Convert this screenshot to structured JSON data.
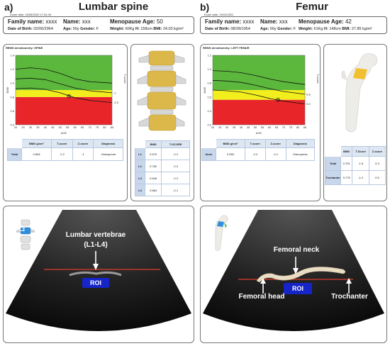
{
  "left": {
    "panel_letter": "a)",
    "title": "Lumbar spine",
    "exam_date": "Exam date: 15/06/2020 17:34:49",
    "patient": {
      "family_label": "Family name:",
      "family_value": "xxxx",
      "name_label": "Name:",
      "name_value": "xxx",
      "menopause_label": "Menopause Age:",
      "menopause_value": "50",
      "dob_label": "Date of Birth:",
      "dob_value": "02/06/2964",
      "age_label": "Age:",
      "age_value": "56y",
      "gender_label": "Gender:",
      "gender_value": "F",
      "weight_label": "Weight:",
      "weight_value": "60Kg",
      "height_label": "H:",
      "height_value": "158cm",
      "bmi_label": "BMI:",
      "bmi_value": "24.03 kg/m²"
    },
    "chart_title": "REMS densitometry: SPINE",
    "summary_table": {
      "headers": [
        "BMD g/cm²",
        "T-score",
        "Z-score",
        "Diagnosis"
      ],
      "row_label": "Total",
      "row": [
        "0.808",
        "-2.2",
        "-1",
        "Osteopenia"
      ]
    },
    "vertebra_table": {
      "headers": [
        "BMD",
        "T-SCORE"
      ],
      "rows": [
        {
          "label": "L1",
          "bmd": "0.679",
          "t": "-2.2"
        },
        {
          "label": "L2",
          "bmd": "0.782",
          "t": "-2.2"
        },
        {
          "label": "L3",
          "bmd": "0.846",
          "t": "-2.2"
        },
        {
          "label": "L4",
          "bmd": "0.884",
          "t": "-2.1"
        }
      ]
    },
    "ultrasound": {
      "inset_label": "L2",
      "annotation_line1": "Lumbar vertebrae",
      "annotation_line2": "(L1-L4)",
      "roi": "ROI"
    }
  },
  "right": {
    "panel_letter": "b)",
    "title": "Femur",
    "exam_date": "Exam date: 19/10/2021",
    "patient": {
      "family_label": "Family name:",
      "family_value": "xxxx",
      "name_label": "Name:",
      "name_value": "xxx",
      "menopause_label": "Menopause Age:",
      "menopause_value": "42",
      "dob_label": "Date of Birth:",
      "dob_value": "08/28/1954",
      "age_label": "Age:",
      "age_value": "66y",
      "gender_label": "Gender:",
      "gender_value": "F",
      "weight_label": "Weight:",
      "weight_value": "61Kg",
      "height_label": "H:",
      "height_value": "148cm",
      "bmi_label": "BMI:",
      "bmi_value": "27.85 kg/m²"
    },
    "chart_title": "REMS densitometry: LEFT FEMUR",
    "summary_table": {
      "headers": [
        "BMD g/cm²",
        "T-score",
        "Z-score",
        "Diagnosis"
      ],
      "row_label": "Neck",
      "row": [
        "0.559",
        "-2.3",
        "-0.1",
        "Osteopenia"
      ]
    },
    "region_table": {
      "headers": [
        "BMD",
        "T-Score",
        "Z-score"
      ],
      "rows": [
        {
          "label": "Total",
          "bmd": "0.751",
          "t": "-1.6",
          "z": "0.3"
        },
        {
          "label": "Trochanter",
          "bmd": "0.775",
          "t": "-1.2",
          "z": "0.5"
        }
      ]
    },
    "ultrasound": {
      "neck_label": "Femoral neck",
      "head_label": "Femoral head",
      "trochanter_label": "Trochanter",
      "roi": "ROI"
    }
  },
  "chart_data": [
    {
      "type": "line",
      "title": "REMS densitometry: SPINE",
      "xlabel": "AGE",
      "ylabel": "BMD",
      "y2label": "T-score",
      "x_ticks": [
        20,
        25,
        30,
        35,
        40,
        45,
        50,
        55,
        60,
        65,
        70,
        75,
        80,
        85
      ],
      "y_ticks": [
        0.4,
        0.6,
        0.8,
        1.0,
        1.2,
        1.4
      ],
      "xlim": [
        20,
        85
      ],
      "ylim": [
        0.4,
        1.4
      ],
      "t_ticks": [
        "-1",
        "-2.5"
      ],
      "zones": [
        {
          "color": "#e8262a",
          "from": 0.4,
          "to": 0.8
        },
        {
          "color": "#f2ee1e",
          "from": 0.8,
          "to": 0.9
        },
        {
          "color": "#5cb83c",
          "from": 0.9,
          "to": 1.4
        }
      ],
      "series": [
        {
          "values_x": [
            20,
            30,
            40,
            50,
            60,
            70,
            85
          ],
          "values_y": [
            1.2,
            1.22,
            1.2,
            1.14,
            1.06,
            1.02,
            1.0
          ]
        },
        {
          "values_x": [
            20,
            30,
            40,
            50,
            60,
            70,
            85
          ],
          "values_y": [
            1.06,
            1.07,
            1.05,
            0.99,
            0.93,
            0.89,
            0.86
          ]
        },
        {
          "values_x": [
            20,
            30,
            40,
            50,
            60,
            70,
            85
          ],
          "values_y": [
            0.92,
            0.93,
            0.91,
            0.86,
            0.79,
            0.75,
            0.72
          ]
        }
      ],
      "points": [
        {
          "x": 56,
          "y": 0.81
        }
      ]
    },
    {
      "type": "line",
      "title": "REMS densitometry: LEFT FEMUR",
      "xlabel": "AGE",
      "ylabel": "BMD",
      "y2label": "T-score",
      "x_ticks": [
        20,
        25,
        30,
        35,
        40,
        45,
        50,
        55,
        60,
        65,
        70,
        75,
        80,
        85
      ],
      "y_ticks": [
        0.2,
        0.4,
        0.6,
        0.8,
        1.0,
        1.2
      ],
      "xlim": [
        20,
        85
      ],
      "ylim": [
        0.2,
        1.2
      ],
      "t_ticks": [
        "0.8",
        "0.6"
      ],
      "zones": [
        {
          "color": "#e8262a",
          "from": 0.2,
          "to": 0.56
        },
        {
          "color": "#f2ee1e",
          "from": 0.56,
          "to": 0.7
        },
        {
          "color": "#5cb83c",
          "from": 0.7,
          "to": 1.2
        }
      ],
      "series": [
        {
          "values_x": [
            20,
            30,
            40,
            50,
            60,
            70,
            85
          ],
          "values_y": [
            0.98,
            0.97,
            0.95,
            0.91,
            0.86,
            0.82,
            0.78
          ]
        },
        {
          "values_x": [
            20,
            30,
            40,
            50,
            60,
            70,
            85
          ],
          "values_y": [
            0.84,
            0.83,
            0.81,
            0.77,
            0.72,
            0.68,
            0.64
          ]
        },
        {
          "values_x": [
            20,
            30,
            40,
            50,
            60,
            70,
            85
          ],
          "values_y": [
            0.7,
            0.69,
            0.67,
            0.63,
            0.58,
            0.54,
            0.5
          ]
        }
      ],
      "points": [
        {
          "x": 66,
          "y": 0.56
        }
      ]
    }
  ]
}
